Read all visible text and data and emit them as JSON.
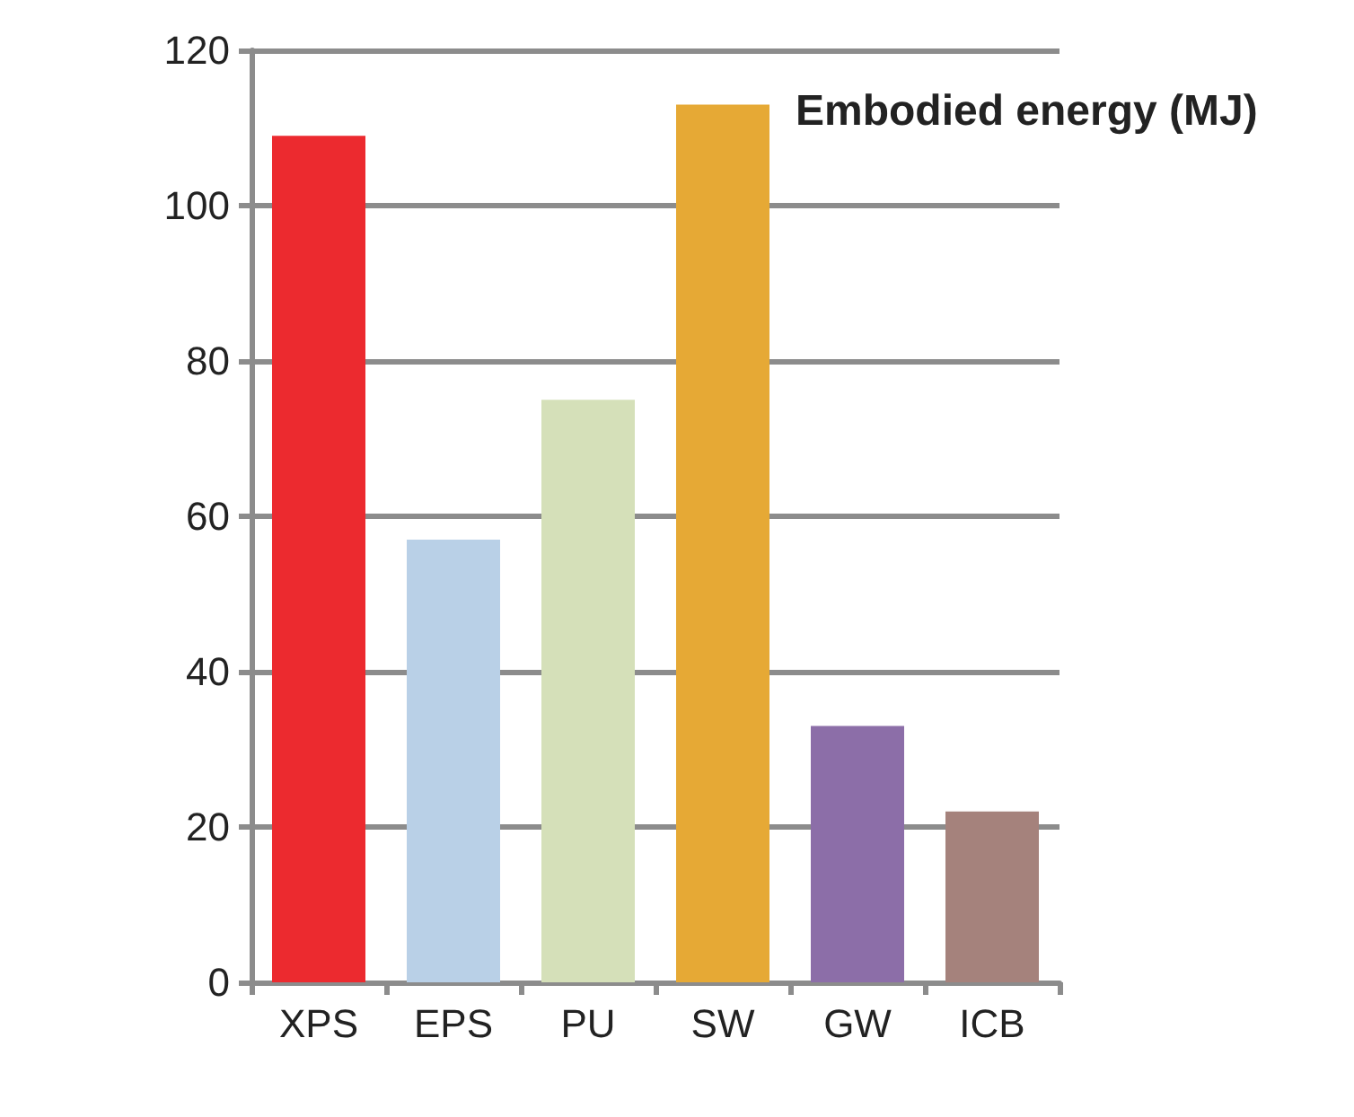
{
  "chart_data": {
    "type": "bar",
    "title": "Embodied energy (MJ)",
    "categories": [
      "XPS",
      "EPS",
      "PU",
      "SW",
      "GW",
      "ICB"
    ],
    "values": [
      109,
      57,
      75,
      113,
      33,
      22
    ],
    "colors": [
      "#ec2a2f",
      "#b9d0e7",
      "#d5e0b9",
      "#e6a935",
      "#8c6ea8",
      "#a5827c"
    ],
    "ylim": [
      0,
      120
    ],
    "yticks": [
      0,
      20,
      40,
      60,
      80,
      100,
      120
    ],
    "grid": "y"
  }
}
